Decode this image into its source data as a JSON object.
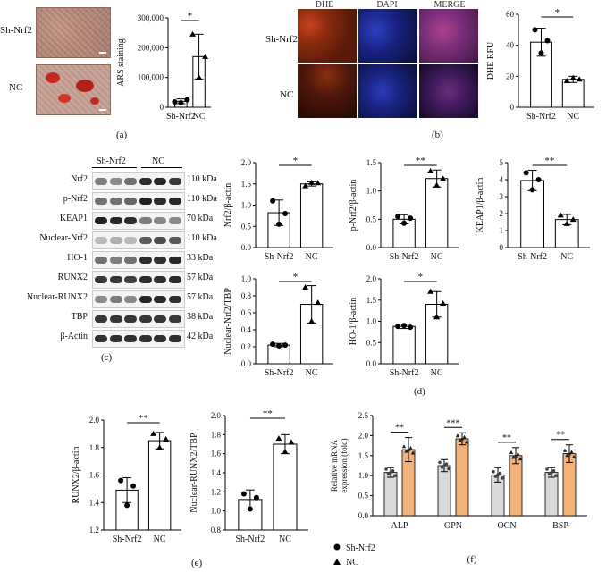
{
  "panels": {
    "a": "(a)",
    "b": "(b)",
    "c": "(c)",
    "d": "(d)",
    "e": "(e)",
    "f": "(f)"
  },
  "panel_a": {
    "row_labels": [
      "Sh-Nrf2",
      "NC"
    ]
  },
  "panel_b": {
    "col_titles": [
      "DHE",
      "DAPI",
      "MERGE"
    ],
    "row_labels": [
      "Sh-Nrf2",
      "NC"
    ]
  },
  "panel_c": {
    "group_labels": [
      "Sh-Nrf2",
      "NC"
    ],
    "bands": [
      {
        "name": "Nrf2",
        "kda": "110 kDa"
      },
      {
        "name": "p-Nrf2",
        "kda": "110 kDa"
      },
      {
        "name": "KEAP1",
        "kda": "70 kDa"
      },
      {
        "name": "Nuclear-Nrf2",
        "kda": "110 kDa"
      },
      {
        "name": "HO-1",
        "kda": "33 kDa"
      },
      {
        "name": "RUNX2",
        "kda": "57 kDa"
      },
      {
        "name": "Nuclear-RUNX2",
        "kda": "57 kDa"
      },
      {
        "name": "TBP",
        "kda": "38 kDa"
      },
      {
        "name": "β-Actin",
        "kda": "42 kDa"
      }
    ]
  },
  "colors": {
    "bar_nc": "#f2b27a",
    "bar_sh": "#d9d9d9",
    "bar_white": "#ffffff",
    "blot_band": "#1a1a1a"
  },
  "chart_data": [
    {
      "id": "ars",
      "type": "bar",
      "categories": [
        "Sh-Nrf2",
        "NC"
      ],
      "values": [
        20000,
        170000
      ],
      "errors": [
        8000,
        75000
      ],
      "points": [
        [
          18000,
          15000,
          25000
        ],
        [
          245000,
          100000,
          170000
        ]
      ],
      "ylabel": "ARS staining",
      "yticks": [
        0,
        100000,
        200000,
        300000
      ],
      "ytick_labels": [
        "0",
        "100,000",
        "200,000",
        "300,000"
      ],
      "ylim": [
        0,
        300000
      ],
      "sig": "*"
    },
    {
      "id": "dhe",
      "type": "bar",
      "categories": [
        "Sh-Nrf2",
        "NC"
      ],
      "values": [
        42,
        18
      ],
      "errors": [
        9,
        2
      ],
      "points": [
        [
          50,
          35,
          43
        ],
        [
          17,
          19,
          18
        ]
      ],
      "ylabel": "DHE RFU",
      "yticks": [
        0,
        20,
        40,
        60
      ],
      "ytick_labels": [
        "0",
        "20",
        "40",
        "60"
      ],
      "ylim": [
        0,
        60
      ],
      "sig": "*"
    },
    {
      "id": "nrf2",
      "type": "bar",
      "categories": [
        "Sh-Nrf2",
        "NC"
      ],
      "values": [
        0.82,
        1.5
      ],
      "errors": [
        0.3,
        0.05
      ],
      "points": [
        [
          1.1,
          0.55,
          0.8
        ],
        [
          1.45,
          1.53,
          1.52
        ]
      ],
      "ylabel": "Nrf2/β-actin",
      "yticks": [
        0,
        0.5,
        1.0,
        1.5,
        2.0
      ],
      "ytick_labels": [
        "0.0",
        "0.5",
        "1.0",
        "1.5",
        "2.0"
      ],
      "ylim": [
        0,
        2.0
      ],
      "sig": "*"
    },
    {
      "id": "pnrf2",
      "type": "bar",
      "categories": [
        "Sh-Nrf2",
        "NC"
      ],
      "values": [
        0.5,
        1.22
      ],
      "errors": [
        0.08,
        0.15
      ],
      "points": [
        [
          0.55,
          0.43,
          0.52
        ],
        [
          1.35,
          1.1,
          1.22
        ]
      ],
      "ylabel": "p-Nrf2/β-actin",
      "yticks": [
        0,
        0.5,
        1.0,
        1.5
      ],
      "ytick_labels": [
        "0.0",
        "0.5",
        "1.0",
        "1.5"
      ],
      "ylim": [
        0,
        1.5
      ],
      "sig": "**"
    },
    {
      "id": "keap1",
      "type": "bar",
      "categories": [
        "Sh-Nrf2",
        "NC"
      ],
      "values": [
        3.95,
        1.65
      ],
      "errors": [
        0.6,
        0.3
      ],
      "points": [
        [
          4.4,
          3.4,
          4.0
        ],
        [
          1.9,
          1.4,
          1.65
        ]
      ],
      "ylabel": "KEAP1/β-actin",
      "yticks": [
        0,
        1,
        2,
        3,
        4,
        5
      ],
      "ytick_labels": [
        "0",
        "1",
        "2",
        "3",
        "4",
        "5"
      ],
      "ylim": [
        0,
        5
      ],
      "sig": "**"
    },
    {
      "id": "nucnrf2",
      "type": "bar",
      "categories": [
        "Sh-Nrf2",
        "NC"
      ],
      "values": [
        0.22,
        0.7
      ],
      "errors": [
        0.02,
        0.22
      ],
      "points": [
        [
          0.23,
          0.21,
          0.22
        ],
        [
          0.9,
          0.5,
          0.72
        ]
      ],
      "ylabel": "Nuclear-Nrf2/TBP",
      "yticks": [
        0,
        0.2,
        0.4,
        0.6,
        0.8,
        1.0
      ],
      "ytick_labels": [
        "0.0",
        "0.2",
        "0.4",
        "0.6",
        "0.8",
        "1.0"
      ],
      "ylim": [
        0,
        1.0
      ],
      "sig": "*"
    },
    {
      "id": "ho1",
      "type": "bar",
      "categories": [
        "Sh-Nrf2",
        "NC"
      ],
      "values": [
        0.88,
        1.4
      ],
      "errors": [
        0.05,
        0.3
      ],
      "points": [
        [
          0.88,
          0.9,
          0.86
        ],
        [
          1.7,
          1.1,
          1.42
        ]
      ],
      "ylabel": "HO-1/β-actin",
      "yticks": [
        0,
        0.5,
        1.0,
        1.5,
        2.0
      ],
      "ytick_labels": [
        "0.0",
        "0.5",
        "1.0",
        "1.5",
        "2.0"
      ],
      "ylim": [
        0,
        2.0
      ],
      "sig": "*"
    },
    {
      "id": "runx2",
      "type": "bar",
      "categories": [
        "Sh-Nrf2",
        "NC"
      ],
      "values": [
        1.49,
        1.85
      ],
      "errors": [
        0.09,
        0.06
      ],
      "points": [
        [
          1.56,
          1.38,
          1.52
        ],
        [
          1.9,
          1.8,
          1.86
        ]
      ],
      "ylabel": "RUNX2/β-actin",
      "yticks": [
        1.2,
        1.4,
        1.6,
        1.8,
        2.0
      ],
      "ytick_labels": [
        "1.2",
        "1.4",
        "1.6",
        "1.8",
        "2.0"
      ],
      "ylim": [
        1.2,
        2.0
      ],
      "sig": "**"
    },
    {
      "id": "nucrunx2",
      "type": "bar",
      "categories": [
        "Sh-Nrf2",
        "NC"
      ],
      "values": [
        1.12,
        1.7
      ],
      "errors": [
        0.1,
        0.1
      ],
      "points": [
        [
          1.18,
          1.02,
          1.14
        ],
        [
          1.76,
          1.62,
          1.72
        ]
      ],
      "ylabel": "Nuclear-RUNX2/TBP",
      "yticks": [
        0.8,
        1.0,
        1.2,
        1.4,
        1.6,
        1.8,
        2.0
      ],
      "ytick_labels": [
        "0.8",
        "1.0",
        "1.2",
        "1.4",
        "1.6",
        "1.8",
        "2.0"
      ],
      "ylim": [
        0.8,
        2.0
      ],
      "sig": "**"
    },
    {
      "id": "mrna",
      "type": "bar",
      "categories": [
        "ALP",
        "OPN",
        "OCN",
        "BSP"
      ],
      "series": [
        {
          "name": "Sh-Nrf2",
          "values": [
            1.08,
            1.25,
            1.02,
            1.08
          ],
          "errors": [
            0.12,
            0.15,
            0.18,
            0.12
          ]
        },
        {
          "name": "NC",
          "values": [
            1.65,
            1.92,
            1.5,
            1.55
          ],
          "errors": [
            0.3,
            0.15,
            0.2,
            0.22
          ]
        }
      ],
      "ylabel": "Relative mRNA\nexpression (fold)",
      "yticks": [
        0,
        0.5,
        1.0,
        1.5,
        2.0,
        2.5
      ],
      "ytick_labels": [
        "0.0",
        "0.5",
        "1.0",
        "1.5",
        "2.0",
        "2.5"
      ],
      "ylim": [
        0,
        2.5
      ],
      "sigs": [
        "**",
        "***",
        "**",
        "**"
      ],
      "legend": [
        "Sh-Nrf2",
        "NC"
      ]
    }
  ]
}
